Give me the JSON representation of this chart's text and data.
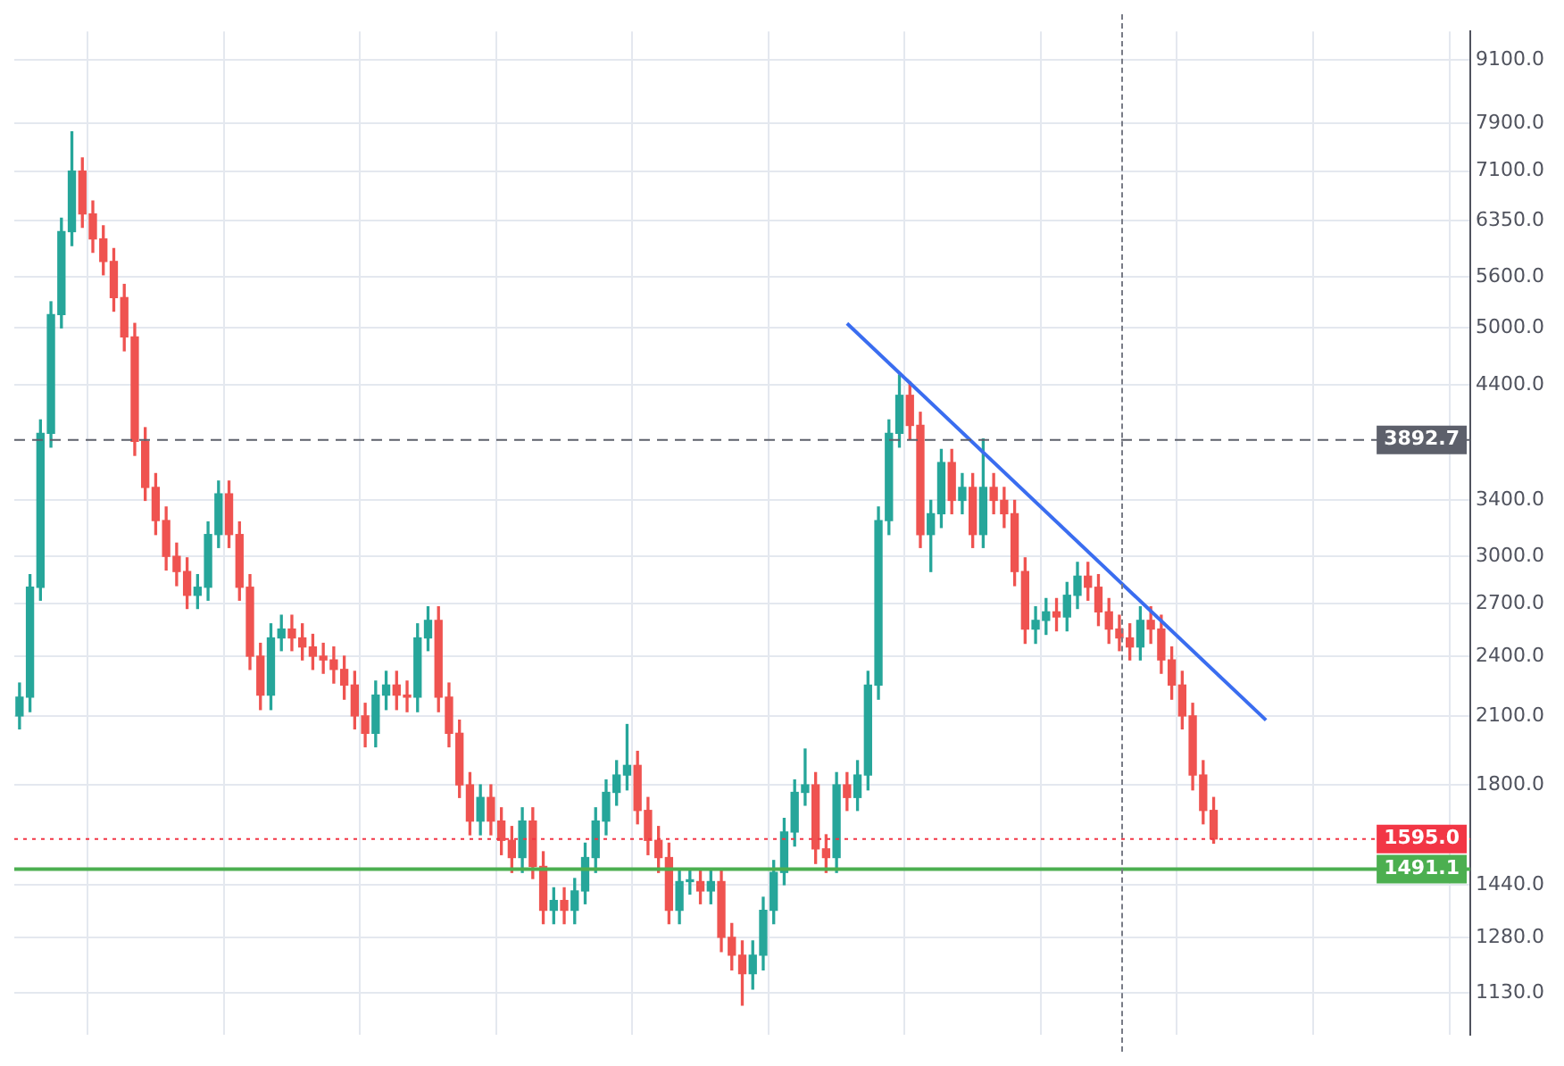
{
  "chart_data": {
    "type": "candlestick",
    "log": "y",
    "grid": true,
    "legend": false,
    "tick_labels": "y",
    "colors": [
      "#26a69a",
      "#26a69a",
      "#26a69a",
      "#26a69a",
      "#26a69a",
      "#26a69a",
      "#ef5350",
      "#ef5350",
      "#ef5350",
      "#ef5350",
      "#ef5350",
      "#ef5350",
      "#ef5350",
      "#ef5350",
      "#ef5350",
      "#ef5350",
      "#ef5350",
      "#26a69a",
      "#26a69a",
      "#26a69a",
      "#ef5350",
      "#ef5350",
      "#ef5350",
      "#ef5350",
      "#26a69a",
      "#26a69a",
      "#ef5350",
      "#ef5350",
      "#ef5350",
      "#ef5350",
      "#ef5350",
      "#ef5350",
      "#ef5350",
      "#ef5350",
      "#26a69a",
      "#26a69a",
      "#ef5350",
      "#ef5350",
      "#26a69a",
      "#26a69a",
      "#ef5350",
      "#ef5350",
      "#ef5350",
      "#ef5350",
      "#26a69a",
      "#ef5350",
      "#ef5350",
      "#ef5350",
      "#26a69a",
      "#ef5350",
      "#ef5350",
      "#26a69a",
      "#ef5350",
      "#26a69a",
      "#26a69a",
      "#26a69a",
      "#26a69a",
      "#26a69a",
      "#26a69a",
      "#ef5350",
      "#ef5350",
      "#ef5350",
      "#ef5350",
      "#26a69a",
      "#26a69a",
      "#ef5350",
      "#26a69a",
      "#ef5350",
      "#ef5350",
      "#ef5350",
      "#26a69a",
      "#26a69a",
      "#26a69a",
      "#26a69a",
      "#26a69a",
      "#26a69a",
      "#ef5350",
      "#ef5350",
      "#26a69a",
      "#ef5350",
      "#26a69a",
      "#26a69a",
      "#26a69a",
      "#26a69a",
      "#26a69a",
      "#ef5350",
      "#ef5350",
      "#26a69a",
      "#26a69a",
      "#ef5350",
      "#26a69a",
      "#ef5350",
      "#26a69a",
      "#ef5350",
      "#ef5350",
      "#ef5350",
      "#ef5350",
      "#26a69a",
      "#26a69a",
      "#ef5350",
      "#26a69a",
      "#26a69a",
      "#ef5350",
      "#ef5350",
      "#ef5350",
      "#ef5350",
      "#ef5350",
      "#26a69a",
      "#ef5350",
      "#ef5350",
      "#ef5350",
      "#ef5350",
      "#ef5350",
      "#ef5350",
      "#ef5350",
      null,
      null,
      null,
      null,
      null,
      null,
      null,
      null,
      null,
      null,
      null,
      null,
      null,
      null,
      null,
      null,
      null,
      null,
      null,
      null,
      null,
      null,
      null,
      null
    ],
    "categories": [
      null,
      null,
      null,
      null,
      null,
      null,
      null,
      null,
      null,
      null,
      null,
      null,
      null,
      null,
      null,
      null,
      null,
      null,
      null,
      null,
      null,
      null,
      null,
      null,
      null,
      null,
      null,
      null,
      null,
      null,
      null,
      null,
      null,
      null,
      null,
      null,
      null,
      null,
      null,
      null,
      null,
      null,
      null,
      null,
      null,
      null,
      null,
      null,
      null,
      null,
      null,
      null,
      null,
      null,
      null,
      null,
      null,
      null,
      null,
      null,
      null,
      null,
      null,
      null,
      null,
      null,
      null,
      null,
      null,
      null,
      null,
      null,
      null,
      null,
      null,
      null,
      null,
      null,
      null,
      null,
      null,
      null,
      null,
      null,
      null,
      null,
      null,
      null,
      null,
      null,
      null,
      null,
      null,
      null,
      null,
      null,
      null,
      null,
      null,
      null,
      null,
      null,
      null,
      null,
      null,
      null,
      null,
      null,
      null,
      null,
      null,
      null,
      null,
      null,
      null,
      null,
      null,
      null,
      null,
      null,
      null,
      null,
      null,
      null,
      null,
      null,
      null,
      null,
      null,
      null,
      null,
      null,
      null,
      null,
      null,
      null,
      null,
      null,
      null
    ],
    "ohlc": [
      [
        2100,
        2260,
        2040,
        2190
      ],
      [
        2190,
        2880,
        2120,
        2800
      ],
      [
        2800,
        4070,
        2720,
        3950
      ],
      [
        3950,
        5300,
        3830,
        5150
      ],
      [
        5150,
        6390,
        5000,
        6200
      ],
      [
        6200,
        7750,
        6010,
        7100
      ],
      [
        7100,
        7310,
        6260,
        6450
      ],
      [
        6450,
        6640,
        5920,
        6100
      ],
      [
        6100,
        6280,
        5630,
        5800
      ],
      [
        5800,
        5970,
        5190,
        5350
      ],
      [
        5350,
        5510,
        4750,
        4900
      ],
      [
        4900,
        5050,
        3760,
        3880
      ],
      [
        3880,
        4000,
        3400,
        3500
      ],
      [
        3500,
        3610,
        3150,
        3250
      ],
      [
        3250,
        3350,
        2910,
        3000
      ],
      [
        3000,
        3090,
        2810,
        2900
      ],
      [
        2900,
        2990,
        2670,
        2750
      ],
      [
        2750,
        2880,
        2670,
        2800
      ],
      [
        2800,
        3240,
        2720,
        3150
      ],
      [
        3150,
        3550,
        3060,
        3450
      ],
      [
        3450,
        3550,
        3060,
        3150
      ],
      [
        3150,
        3240,
        2720,
        2800
      ],
      [
        2800,
        2880,
        2330,
        2400
      ],
      [
        2400,
        2470,
        2130,
        2200
      ],
      [
        2200,
        2580,
        2130,
        2500
      ],
      [
        2500,
        2630,
        2430,
        2550
      ],
      [
        2550,
        2630,
        2430,
        2500
      ],
      [
        2500,
        2580,
        2380,
        2450
      ],
      [
        2450,
        2520,
        2330,
        2400
      ],
      [
        2400,
        2470,
        2310,
        2380
      ],
      [
        2380,
        2450,
        2260,
        2330
      ],
      [
        2330,
        2400,
        2180,
        2250
      ],
      [
        2250,
        2320,
        2040,
        2100
      ],
      [
        2100,
        2160,
        1960,
        2020
      ],
      [
        2020,
        2270,
        1960,
        2200
      ],
      [
        2200,
        2320,
        2130,
        2250
      ],
      [
        2250,
        2320,
        2130,
        2200
      ],
      [
        2200,
        2270,
        2120,
        2190
      ],
      [
        2190,
        2580,
        2120,
        2500
      ],
      [
        2500,
        2680,
        2430,
        2600
      ],
      [
        2600,
        2680,
        2120,
        2190
      ],
      [
        2190,
        2260,
        1960,
        2020
      ],
      [
        2020,
        2080,
        1750,
        1800
      ],
      [
        1800,
        1850,
        1610,
        1660
      ],
      [
        1660,
        1800,
        1610,
        1750
      ],
      [
        1750,
        1800,
        1610,
        1660
      ],
      [
        1660,
        1710,
        1540,
        1590
      ],
      [
        1590,
        1640,
        1480,
        1530
      ],
      [
        1530,
        1710,
        1480,
        1660
      ],
      [
        1660,
        1710,
        1460,
        1500
      ],
      [
        1500,
        1550,
        1320,
        1360
      ],
      [
        1360,
        1430,
        1320,
        1390
      ],
      [
        1390,
        1430,
        1320,
        1360
      ],
      [
        1360,
        1460,
        1320,
        1420
      ],
      [
        1420,
        1580,
        1380,
        1530
      ],
      [
        1530,
        1710,
        1480,
        1660
      ],
      [
        1660,
        1820,
        1610,
        1770
      ],
      [
        1770,
        1900,
        1720,
        1840
      ],
      [
        1840,
        2060,
        1780,
        1880
      ],
      [
        1880,
        1940,
        1650,
        1700
      ],
      [
        1700,
        1750,
        1540,
        1590
      ],
      [
        1590,
        1640,
        1480,
        1530
      ],
      [
        1530,
        1580,
        1320,
        1360
      ],
      [
        1360,
        1490,
        1320,
        1450
      ],
      [
        1450,
        1490,
        1410,
        1450
      ],
      [
        1450,
        1490,
        1380,
        1420
      ],
      [
        1420,
        1490,
        1380,
        1450
      ],
      [
        1450,
        1490,
        1240,
        1280
      ],
      [
        1280,
        1320,
        1190,
        1230
      ],
      [
        1230,
        1270,
        1100,
        1180
      ],
      [
        1180,
        1270,
        1140,
        1230
      ],
      [
        1230,
        1400,
        1190,
        1360
      ],
      [
        1360,
        1520,
        1320,
        1480
      ],
      [
        1480,
        1670,
        1440,
        1620
      ],
      [
        1620,
        1820,
        1570,
        1770
      ],
      [
        1770,
        1950,
        1720,
        1800
      ],
      [
        1800,
        1850,
        1510,
        1560
      ],
      [
        1560,
        1610,
        1480,
        1530
      ],
      [
        1530,
        1850,
        1480,
        1800
      ],
      [
        1800,
        1850,
        1700,
        1750
      ],
      [
        1750,
        1900,
        1700,
        1840
      ],
      [
        1840,
        2320,
        1780,
        2250
      ],
      [
        2250,
        3350,
        2180,
        3250
      ],
      [
        3250,
        4070,
        3150,
        3950
      ],
      [
        3950,
        4500,
        3830,
        4300
      ],
      [
        4300,
        4430,
        3900,
        4020
      ],
      [
        4020,
        4140,
        3060,
        3150
      ],
      [
        3150,
        3400,
        2900,
        3300
      ],
      [
        3300,
        3810,
        3200,
        3700
      ],
      [
        3700,
        3810,
        3300,
        3400
      ],
      [
        3400,
        3610,
        3300,
        3500
      ],
      [
        3500,
        3610,
        3060,
        3150
      ],
      [
        3150,
        3900,
        3060,
        3500
      ],
      [
        3500,
        3610,
        3300,
        3400
      ],
      [
        3400,
        3500,
        3200,
        3300
      ],
      [
        3300,
        3400,
        2810,
        2900
      ],
      [
        2900,
        2990,
        2470,
        2550
      ],
      [
        2550,
        2680,
        2470,
        2600
      ],
      [
        2600,
        2730,
        2520,
        2650
      ],
      [
        2650,
        2730,
        2540,
        2620
      ],
      [
        2620,
        2830,
        2540,
        2750
      ],
      [
        2750,
        2960,
        2670,
        2870
      ],
      [
        2870,
        2960,
        2720,
        2800
      ],
      [
        2800,
        2880,
        2570,
        2650
      ],
      [
        2650,
        2730,
        2470,
        2550
      ],
      [
        2550,
        2630,
        2430,
        2500
      ],
      [
        2500,
        2580,
        2380,
        2450
      ],
      [
        2450,
        2680,
        2380,
        2600
      ],
      [
        2600,
        2680,
        2470,
        2550
      ],
      [
        2550,
        2630,
        2310,
        2380
      ],
      [
        2380,
        2450,
        2180,
        2250
      ],
      [
        2250,
        2320,
        2040,
        2100
      ],
      [
        2100,
        2160,
        1780,
        1840
      ],
      [
        1840,
        1900,
        1650,
        1700
      ],
      [
        1700,
        1750,
        1580,
        1595
      ],
      null,
      null,
      null,
      null,
      null,
      null,
      null,
      null,
      null,
      null,
      null,
      null,
      null,
      null,
      null,
      null,
      null,
      null,
      null,
      null,
      null,
      null,
      null,
      null
    ],
    "series": [
      {
        "type": "line",
        "color": "#3a6df0",
        "values": [
          null,
          null,
          null,
          null,
          null,
          null,
          null,
          null,
          null,
          null,
          null,
          null,
          null,
          null,
          null,
          null,
          null,
          null,
          null,
          null,
          null,
          null,
          null,
          null,
          null,
          null,
          null,
          null,
          null,
          null,
          null,
          null,
          null,
          null,
          null,
          null,
          null,
          null,
          null,
          null,
          null,
          null,
          null,
          null,
          null,
          null,
          null,
          null,
          null,
          null,
          null,
          null,
          null,
          null,
          null,
          null,
          null,
          null,
          null,
          null,
          null,
          null,
          null,
          null,
          null,
          null,
          null,
          null,
          null,
          null,
          null,
          null,
          null,
          null,
          null,
          null,
          null,
          null,
          null,
          5050,
          null,
          null,
          null,
          null,
          null,
          null,
          null,
          null,
          null,
          null,
          null,
          null,
          null,
          null,
          null,
          null,
          null,
          null,
          null,
          null,
          null,
          null,
          null,
          null,
          null,
          null,
          null,
          null,
          null,
          null,
          null,
          null,
          null,
          null,
          null,
          null,
          null,
          null,
          null,
          2080,
          null,
          null,
          null,
          null,
          null,
          null,
          null,
          null,
          null,
          null,
          null,
          null,
          null,
          null,
          null,
          null,
          null,
          null,
          null
        ]
      }
    ],
    "ylim": [
      1030,
      9700
    ],
    "yticks": [
      {
        "value": 1130,
        "label": "1130.0"
      },
      {
        "value": 1280,
        "label": "1280.0"
      },
      {
        "value": 1440,
        "label": "1440.0"
      },
      {
        "value": 1800,
        "label": "1800.0"
      },
      {
        "value": 2100,
        "label": "2100.0"
      },
      {
        "value": 2400,
        "label": "2400.0"
      },
      {
        "value": 2700,
        "label": "2700.0"
      },
      {
        "value": 3000,
        "label": "3000.0"
      },
      {
        "value": 3400,
        "label": "3400.0"
      },
      {
        "value": 4400,
        "label": "4400.0"
      },
      {
        "value": 5000,
        "label": "5000.0"
      },
      {
        "value": 5600,
        "label": "5600.0"
      },
      {
        "value": 6350,
        "label": "6350.0"
      },
      {
        "value": 7100,
        "label": "7100.0"
      },
      {
        "value": 7900,
        "label": "7900.0"
      },
      {
        "value": 9100,
        "label": "9100.0"
      }
    ],
    "ref_lines": [
      {
        "axis": "y",
        "value": 3892.7,
        "label": "3892.7",
        "color": "#5d606b",
        "line_style": "dashed"
      },
      {
        "axis": "y",
        "value": 1595.0,
        "label": "1595.0",
        "color": "#f23645",
        "line_style": "dotted"
      },
      {
        "axis": "y",
        "value": 1491.1,
        "label": "1491.1",
        "color": "#4caf50",
        "line_style": "solid"
      }
    ]
  }
}
